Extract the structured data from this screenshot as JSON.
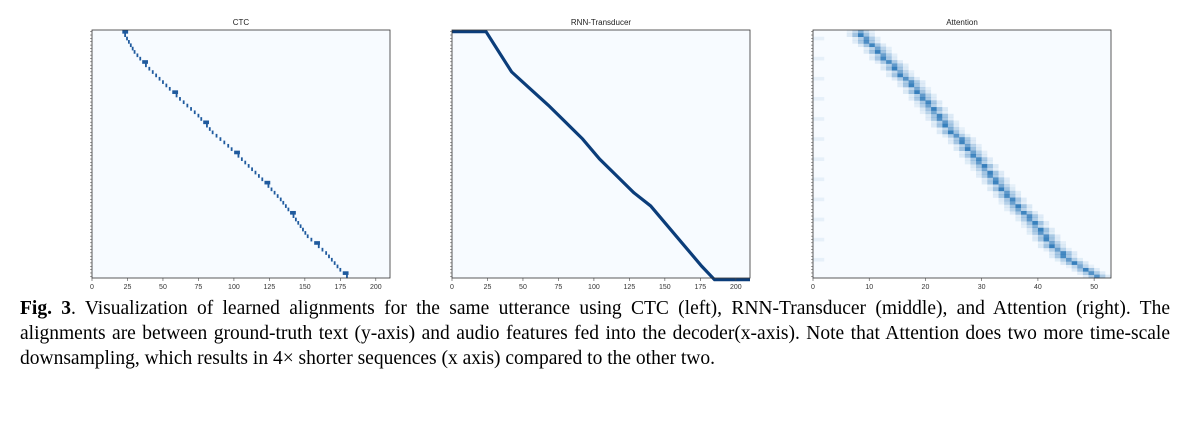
{
  "figure": {
    "caption_label": "Fig. 3",
    "caption_text": ". Visualization of learned alignments for the same utterance using CTC (left), RNN-Transducer (middle), and Attention (right). The alignments are between ground-truth text (y-axis) and audio features fed into the decoder(x-axis). Note that Attention does two more time-scale downsampling, which results in 4× shorter sequences (x axis) compared to the other two."
  },
  "chart_data": [
    {
      "type": "heatmap",
      "title": "CTC",
      "xlabel": "",
      "ylabel": "",
      "xlim": [
        0,
        210
      ],
      "x_ticks": [
        0,
        25,
        50,
        75,
        100,
        125,
        150,
        175,
        200
      ],
      "n_rows": 74,
      "alignment_path": [
        [
          22,
          0
        ],
        [
          30,
          6
        ],
        [
          38,
          10
        ],
        [
          50,
          15
        ],
        [
          62,
          20
        ],
        [
          75,
          25
        ],
        [
          85,
          30
        ],
        [
          96,
          34
        ],
        [
          108,
          39
        ],
        [
          120,
          44
        ],
        [
          133,
          50
        ],
        [
          142,
          55
        ],
        [
          152,
          61
        ],
        [
          165,
          66
        ],
        [
          175,
          71
        ],
        [
          182,
          74
        ]
      ],
      "path_style": "sparse-spikes",
      "colormap": "Blues"
    },
    {
      "type": "heatmap",
      "title": "RNN-Transducer",
      "xlabel": "",
      "ylabel": "",
      "xlim": [
        0,
        210
      ],
      "x_ticks": [
        0,
        25,
        50,
        75,
        100,
        125,
        150,
        175,
        200
      ],
      "n_rows": 74,
      "alignment_path": [
        [
          0,
          0
        ],
        [
          24,
          0
        ],
        [
          30,
          4
        ],
        [
          42,
          12
        ],
        [
          55,
          17
        ],
        [
          68,
          22
        ],
        [
          80,
          27
        ],
        [
          92,
          32
        ],
        [
          104,
          38
        ],
        [
          116,
          43
        ],
        [
          128,
          48
        ],
        [
          140,
          52
        ],
        [
          152,
          58
        ],
        [
          164,
          64
        ],
        [
          176,
          70
        ],
        [
          185,
          74
        ],
        [
          210,
          74
        ]
      ],
      "path_style": "monotonic-staircase",
      "colormap": "Blues"
    },
    {
      "type": "heatmap",
      "title": "Attention",
      "xlabel": "",
      "ylabel": "",
      "xlim": [
        0,
        53
      ],
      "x_ticks": [
        0,
        10,
        20,
        30,
        40,
        50
      ],
      "n_rows": 74,
      "alignment_path": [
        [
          8,
          0
        ],
        [
          11,
          5
        ],
        [
          14,
          10
        ],
        [
          17,
          15
        ],
        [
          20,
          21
        ],
        [
          23,
          27
        ],
        [
          26,
          32
        ],
        [
          29,
          38
        ],
        [
          32,
          44
        ],
        [
          35,
          50
        ],
        [
          38,
          55
        ],
        [
          41,
          61
        ],
        [
          44,
          66
        ],
        [
          48,
          71
        ],
        [
          52,
          74
        ]
      ],
      "path_style": "soft-diagonal",
      "colormap": "Blues"
    }
  ]
}
